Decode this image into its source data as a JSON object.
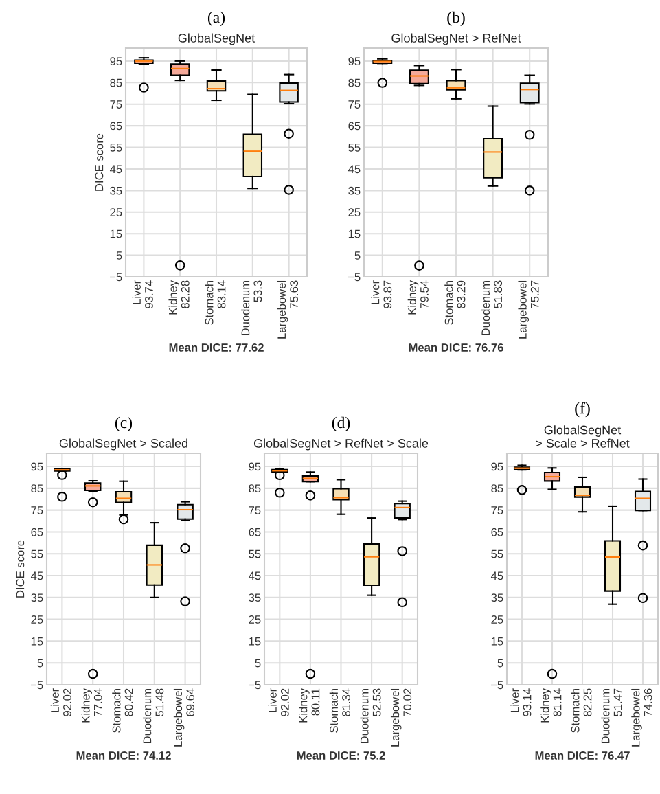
{
  "chart_data": [
    {
      "type": "box",
      "title": "(a)",
      "subtitle": "GlobalSegNet",
      "ylabel": "DICE score",
      "xlabel": "Mean DICE: 77.62",
      "categories": [
        "Liver\n93.74",
        "Kidney\n82.28",
        "Stomach\n83.14",
        "Duodenum\n53.3",
        "Largebowel\n75.63"
      ],
      "colors": [
        "#f4a582",
        "#f4a99a",
        "#f5deb3",
        "#f2ebc2",
        "#e3e8ea"
      ],
      "boxes": [
        {
          "low": 93.5,
          "q1": 94,
          "median": 95,
          "q3": 95.4,
          "high": 96.5,
          "outliers": [
            82.7
          ]
        },
        {
          "low": 86,
          "q1": 88.4,
          "median": 91.5,
          "q3": 93.6,
          "high": 95,
          "outliers": [
            0.3
          ]
        },
        {
          "low": 76.8,
          "q1": 81.2,
          "median": 82.2,
          "q3": 85.7,
          "high": 90.8
        },
        {
          "low": 36,
          "q1": 41.5,
          "median": 53.2,
          "q3": 61,
          "high": 79.5
        },
        {
          "low": 75.2,
          "q1": 76,
          "median": 81.4,
          "q3": 84.8,
          "high": 88.7,
          "outliers": [
            61.3,
            35.3
          ]
        }
      ],
      "ylim": [
        -5,
        101
      ],
      "yticks": [
        -5,
        5,
        15,
        25,
        35,
        45,
        55,
        65,
        75,
        85,
        95
      ],
      "grid": true
    },
    {
      "type": "box",
      "title": "(b)",
      "subtitle": "GlobalSegNet > RefNet",
      "xlabel": "Mean DICE: 76.76",
      "categories": [
        "Liver\n93.87",
        "Kidney\n79.54",
        "Stomach\n83.29",
        "Duodenum\n51.83",
        "Largebowel\n75.27"
      ],
      "colors": [
        "#f4a582",
        "#f4a99a",
        "#f5deb3",
        "#f2ebc2",
        "#e3e8ea"
      ],
      "boxes": [
        {
          "low": 93.9,
          "q1": 94,
          "median": 94.8,
          "q3": 95.2,
          "high": 96,
          "outliers": [
            84.9
          ]
        },
        {
          "low": 83.7,
          "q1": 84.5,
          "median": 88.1,
          "q3": 90.7,
          "high": 92.9,
          "outliers": [
            0.2
          ]
        },
        {
          "low": 77.5,
          "q1": 81.7,
          "median": 82.6,
          "q3": 85.9,
          "high": 91
        },
        {
          "low": 37.1,
          "q1": 40.9,
          "median": 52.8,
          "q3": 59,
          "high": 74.1
        },
        {
          "low": 75.1,
          "q1": 75.7,
          "median": 81.8,
          "q3": 84.7,
          "high": 88.4,
          "outliers": [
            60.8,
            35
          ]
        }
      ],
      "ylim": [
        -5,
        101
      ],
      "yticks": [
        -5,
        5,
        15,
        25,
        35,
        45,
        55,
        65,
        75,
        85,
        95
      ],
      "grid": true
    },
    {
      "type": "box",
      "title": "(c)",
      "subtitle": "GlobalSegNet > Scaled",
      "ylabel": "DICE score",
      "xlabel": "Mean DICE: 74.12",
      "categories": [
        "Liver\n92.02",
        "Kidney\n77.04",
        "Stomach\n80.42",
        "Duodenum\n51.48",
        "Largebowel\n69.64"
      ],
      "colors": [
        "#f4a582",
        "#f4a99a",
        "#f5deb3",
        "#f2ebc2",
        "#e3e8ea"
      ],
      "boxes": [
        {
          "low": 92.9,
          "q1": 92.9,
          "median": 93.4,
          "q3": 94,
          "high": 94,
          "outliers": [
            91.1,
            81.1
          ]
        },
        {
          "low": 83.5,
          "q1": 84,
          "median": 86.1,
          "q3": 87.4,
          "high": 88.4,
          "outliers": [
            78.6,
            0
          ]
        },
        {
          "low": 72.8,
          "q1": 78.5,
          "median": 80.4,
          "q3": 83.4,
          "high": 88.2,
          "outliers": [
            70.8
          ]
        },
        {
          "low": 35,
          "q1": 40.7,
          "median": 49.9,
          "q3": 58.9,
          "high": 69.2
        },
        {
          "low": 70.2,
          "q1": 70.9,
          "median": 75.2,
          "q3": 77.5,
          "high": 78.8,
          "outliers": [
            57.5,
            33.2
          ]
        }
      ],
      "ylim": [
        -5,
        101
      ],
      "yticks": [
        -5,
        5,
        15,
        25,
        35,
        45,
        55,
        65,
        75,
        85,
        95
      ],
      "grid": true
    },
    {
      "type": "box",
      "title": "(d)",
      "subtitle": "GlobalSegNet > RefNet > Scale",
      "xlabel": "Mean DICE: 75.2",
      "categories": [
        "Liver\n92.02",
        "Kidney\n80.11",
        "Stomach\n81.34",
        "Duodenum\n52.53",
        "Largebowel\n70.02"
      ],
      "colors": [
        "#f4a582",
        "#f4a99a",
        "#f5deb3",
        "#f2ebc2",
        "#e3e8ea"
      ],
      "boxes": [
        {
          "low": 92.4,
          "q1": 92.5,
          "median": 93,
          "q3": 93.5,
          "high": 94,
          "outliers": [
            91,
            83
          ]
        },
        {
          "low": 88,
          "q1": 88,
          "median": 89.5,
          "q3": 90.6,
          "high": 92.4,
          "outliers": [
            81.7,
            0
          ]
        },
        {
          "low": 73.1,
          "q1": 79.8,
          "median": 80.7,
          "q3": 84.8,
          "high": 88.9
        },
        {
          "low": 36,
          "q1": 40.6,
          "median": 53.6,
          "q3": 59.5,
          "high": 71.4
        },
        {
          "low": 70.7,
          "q1": 71.4,
          "median": 76.2,
          "q3": 78,
          "high": 79.1,
          "outliers": [
            56.2,
            32.8
          ]
        }
      ],
      "ylim": [
        -5,
        101
      ],
      "yticks": [
        -5,
        5,
        15,
        25,
        35,
        45,
        55,
        65,
        75,
        85,
        95
      ],
      "grid": true
    },
    {
      "type": "box",
      "title": "(f)",
      "subtitle": "GlobalSegNet\n> Scale > RefNet",
      "xlabel": "Mean DICE: 76.47",
      "categories": [
        "Liver\n93.14",
        "Kidney\n81.14",
        "Stomach\n82.25",
        "Duodenum\n51.47",
        "Largebowel\n74.36"
      ],
      "colors": [
        "#f4a582",
        "#f4a99a",
        "#f5deb3",
        "#f2ebc2",
        "#e3e8ea"
      ],
      "boxes": [
        {
          "low": 93.4,
          "q1": 93.5,
          "median": 94.2,
          "q3": 94.6,
          "high": 95.5,
          "outliers": [
            84.2
          ]
        },
        {
          "low": 84.5,
          "q1": 88.3,
          "median": 90.3,
          "q3": 92.2,
          "high": 94.3,
          "outliers": [
            0
          ]
        },
        {
          "low": 74.2,
          "q1": 81,
          "median": 81.8,
          "q3": 85.6,
          "high": 90
        },
        {
          "low": 31.9,
          "q1": 37.9,
          "median": 53.5,
          "q3": 60.9,
          "high": 76.8
        },
        {
          "low": 74.8,
          "q1": 74.8,
          "median": 80.4,
          "q3": 83.5,
          "high": 89.2,
          "outliers": [
            58.8,
            34.7
          ]
        }
      ],
      "ylim": [
        -5,
        101
      ],
      "yticks": [
        -5,
        5,
        15,
        25,
        35,
        45,
        55,
        65,
        75,
        85,
        95
      ],
      "grid": true
    }
  ]
}
